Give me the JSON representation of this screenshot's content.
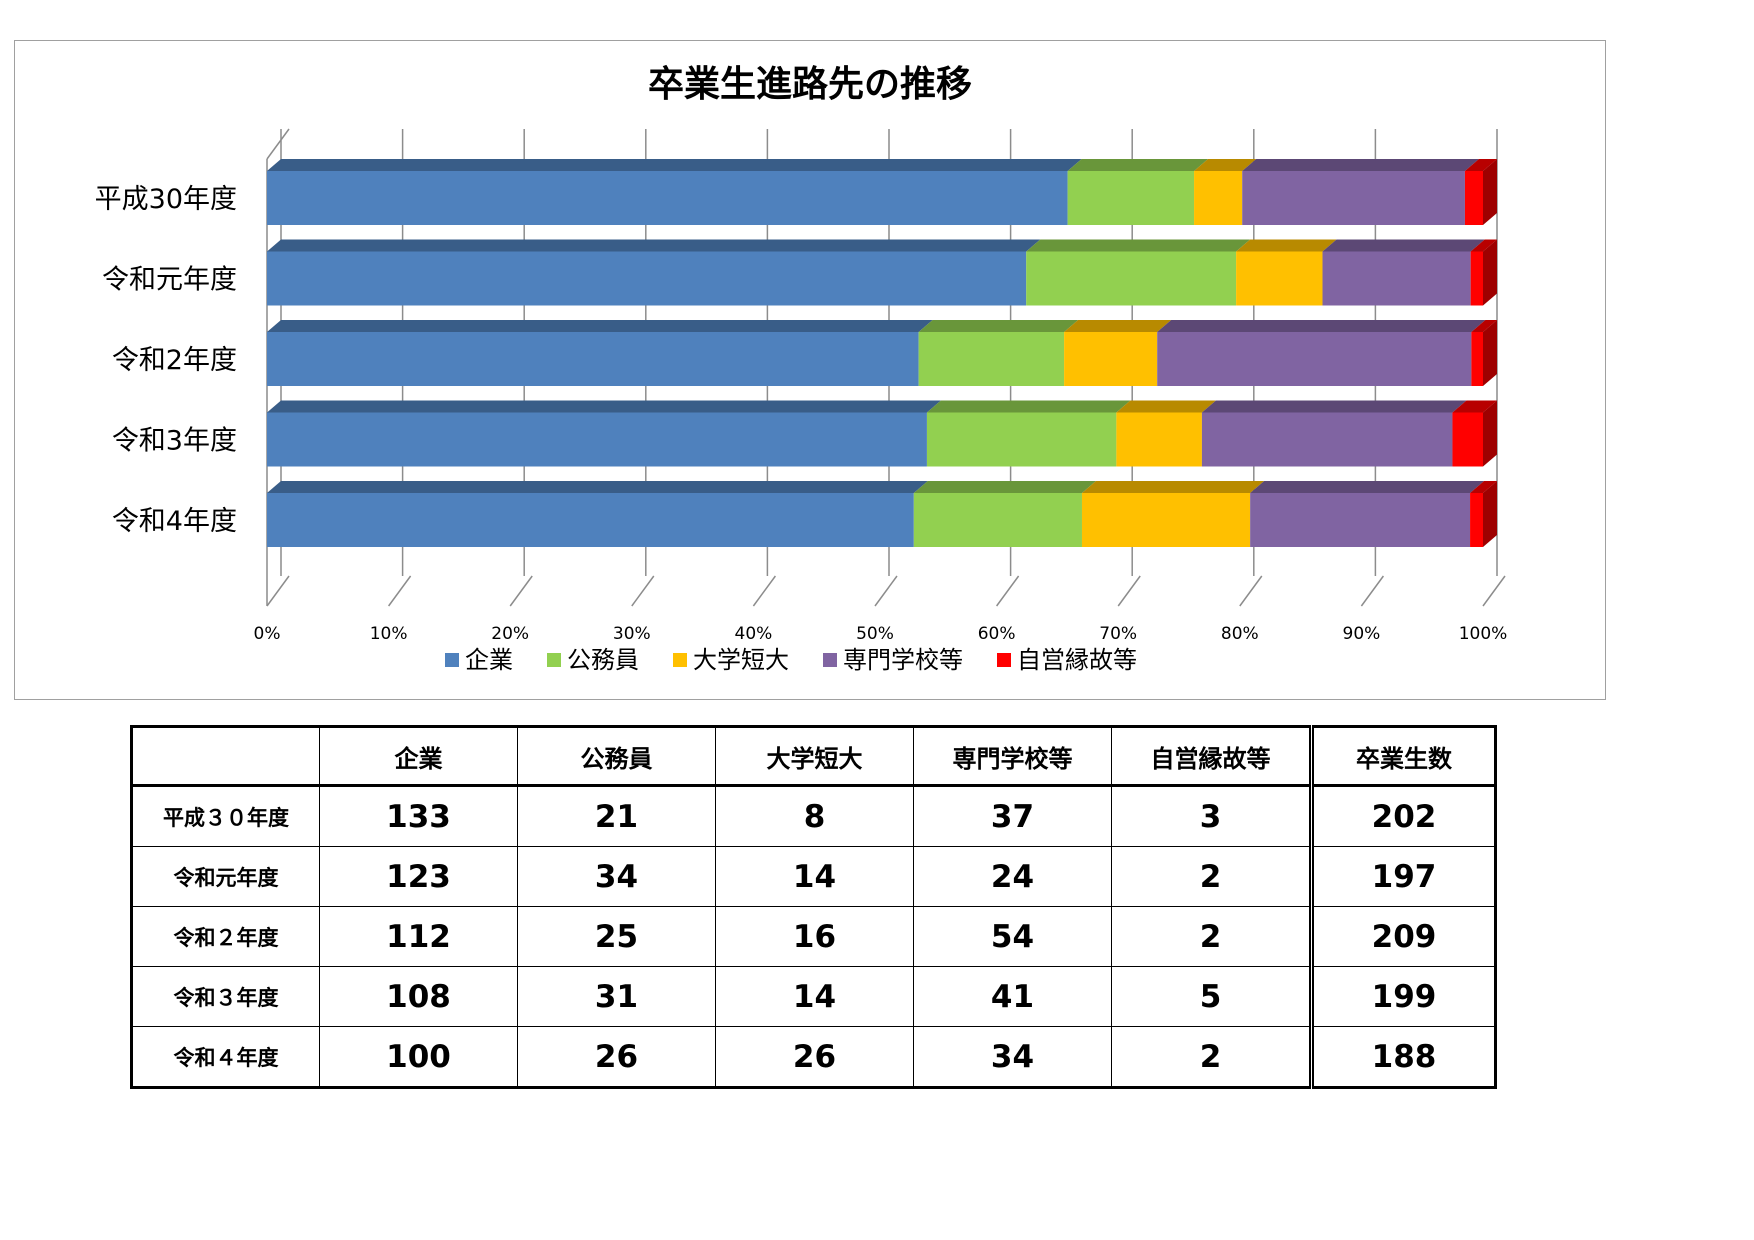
{
  "chart_data": {
    "type": "bar",
    "orientation": "horizontal",
    "stacked": "percent",
    "three_d": true,
    "title": "卒業生進路先の推移",
    "categories": [
      "平成30年度",
      "令和元年度",
      "令和2年度",
      "令和3年度",
      "令和4年度"
    ],
    "series": [
      {
        "name": "企業",
        "color": "#4f81bd",
        "values": [
          133,
          123,
          112,
          108,
          100
        ]
      },
      {
        "name": "公務員",
        "color": "#92d050",
        "values": [
          21,
          34,
          25,
          31,
          26
        ]
      },
      {
        "name": "大学短大",
        "color": "#ffc000",
        "values": [
          8,
          14,
          16,
          14,
          26
        ]
      },
      {
        "name": "専門学校等",
        "color": "#8064a2",
        "values": [
          37,
          24,
          54,
          41,
          34
        ]
      },
      {
        "name": "自営縁故等",
        "color": "#ff0000",
        "values": [
          3,
          2,
          2,
          5,
          2
        ]
      }
    ],
    "xlim": [
      0,
      100
    ],
    "xticks": [
      "0%",
      "10%",
      "20%",
      "30%",
      "40%",
      "50%",
      "60%",
      "70%",
      "80%",
      "90%",
      "100%"
    ],
    "grid": true,
    "legend": "bottom"
  },
  "table": {
    "headers": [
      "",
      "企業",
      "公務員",
      "大学短大",
      "専門学校等",
      "自営縁故等",
      "卒業生数"
    ],
    "rows": [
      {
        "label": "平成３０年度",
        "values": [
          "133",
          "21",
          "8",
          "37",
          "3"
        ],
        "total": "202"
      },
      {
        "label": "令和元年度",
        "values": [
          "123",
          "34",
          "14",
          "24",
          "2"
        ],
        "total": "197"
      },
      {
        "label": "令和２年度",
        "values": [
          "112",
          "25",
          "16",
          "54",
          "2"
        ],
        "total": "209"
      },
      {
        "label": "令和３年度",
        "values": [
          "108",
          "31",
          "14",
          "41",
          "5"
        ],
        "total": "199"
      },
      {
        "label": "令和４年度",
        "values": [
          "100",
          "26",
          "26",
          "34",
          "2"
        ],
        "total": "188"
      }
    ]
  }
}
